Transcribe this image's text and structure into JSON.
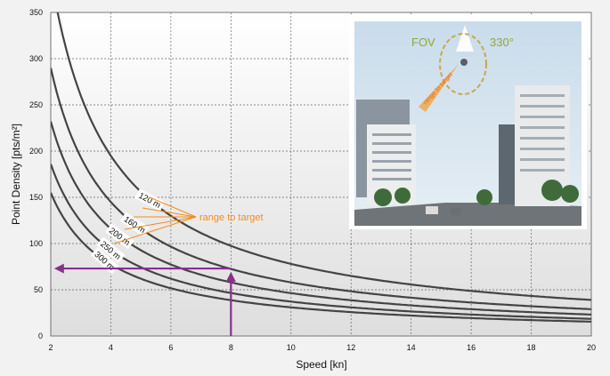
{
  "chart_data": {
    "type": "line",
    "xlabel": "Speed [kn]",
    "ylabel": "Point Density [pts/m²]",
    "xlim": [
      2,
      20
    ],
    "ylim": [
      0,
      350
    ],
    "xticks": [
      "2",
      "4",
      "6",
      "8",
      "10",
      "12",
      "14",
      "16",
      "18",
      "20"
    ],
    "yticks": [
      "0",
      "50",
      "100",
      "150",
      "200",
      "250",
      "300",
      "350"
    ],
    "grid": "dashed",
    "series": [
      {
        "name": "120 m",
        "x": [
          2,
          3,
          4,
          5,
          6,
          8,
          10,
          12,
          14,
          16,
          18,
          20
        ],
        "values": [
          390,
          260,
          195,
          156,
          130,
          97.5,
          78,
          65,
          55.7,
          48.8,
          43.3,
          39
        ]
      },
      {
        "name": "160 m",
        "x": [
          2,
          3,
          4,
          5,
          6,
          8,
          10,
          12,
          14,
          16,
          18,
          20
        ],
        "values": [
          290,
          193.3,
          145,
          116,
          96.7,
          72.5,
          58,
          48.3,
          41.4,
          36.3,
          32.2,
          29
        ]
      },
      {
        "name": "200 m",
        "x": [
          2,
          3,
          4,
          5,
          6,
          8,
          10,
          12,
          14,
          16,
          18,
          20
        ],
        "values": [
          232,
          154.7,
          116,
          92.8,
          77.3,
          58,
          46.4,
          38.7,
          33.1,
          29,
          25.8,
          23.2
        ]
      },
      {
        "name": "250 m",
        "x": [
          2,
          3,
          4,
          5,
          6,
          8,
          10,
          12,
          14,
          16,
          18,
          20
        ],
        "values": [
          186,
          124,
          93,
          74.4,
          62,
          46.5,
          37.2,
          31,
          26.6,
          23.3,
          20.7,
          18.6
        ]
      },
      {
        "name": "300 m",
        "x": [
          2,
          3,
          4,
          5,
          6,
          8,
          10,
          12,
          14,
          16,
          18,
          20
        ],
        "values": [
          155,
          103.3,
          77.5,
          62,
          51.7,
          38.8,
          31,
          25.8,
          22.1,
          19.4,
          17.2,
          15.5
        ]
      }
    ],
    "annotations": {
      "range_label": "range to target",
      "example_speed": 8,
      "example_density": 73,
      "arrow_color": "#8b2f8f",
      "callout_color": "#f28c1a"
    },
    "inset": {
      "fov_label": "FOV",
      "angle_label": "330°",
      "range_text": "range to target"
    }
  }
}
